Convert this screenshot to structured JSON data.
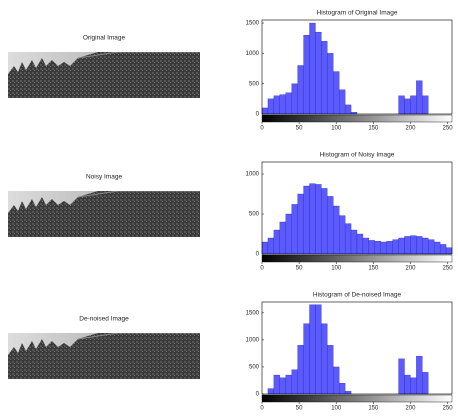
{
  "images": [
    {
      "title": "Original Image"
    },
    {
      "title": "Noisy Image"
    },
    {
      "title": "De-noised Image"
    }
  ],
  "chart_data": [
    {
      "type": "histogram",
      "title": "Histogram of Original Image",
      "color": "#5a5aff",
      "bins": [
        0,
        8,
        16,
        24,
        32,
        40,
        48,
        56,
        64,
        72,
        80,
        88,
        96,
        104,
        112,
        120,
        128,
        136,
        144,
        152,
        160,
        168,
        176,
        184,
        192,
        200,
        208,
        216,
        224,
        232,
        240,
        248,
        256
      ],
      "counts": [
        100,
        250,
        300,
        320,
        350,
        500,
        800,
        1300,
        1500,
        1350,
        1200,
        1000,
        700,
        400,
        150,
        30,
        0,
        0,
        0,
        0,
        0,
        0,
        0,
        300,
        250,
        300,
        550,
        300,
        0,
        0,
        0,
        0
      ],
      "xlim": [
        0,
        256
      ],
      "xticks": [
        0,
        50,
        100,
        150,
        200,
        250
      ],
      "ylim": [
        0,
        1550
      ],
      "yticks": [
        0,
        500,
        1000,
        1500
      ]
    },
    {
      "type": "histogram",
      "title": "Histogram of Noisy Image",
      "color": "#5a5aff",
      "bins": [
        0,
        8,
        16,
        24,
        32,
        40,
        48,
        56,
        64,
        72,
        80,
        88,
        96,
        104,
        112,
        120,
        128,
        136,
        144,
        152,
        160,
        168,
        176,
        184,
        192,
        200,
        208,
        216,
        224,
        232,
        240,
        248,
        256
      ],
      "counts": [
        150,
        200,
        300,
        400,
        500,
        620,
        750,
        850,
        880,
        870,
        820,
        720,
        600,
        480,
        380,
        300,
        250,
        200,
        170,
        160,
        150,
        160,
        180,
        200,
        220,
        230,
        220,
        200,
        180,
        150,
        120,
        80
      ],
      "xlim": [
        0,
        256
      ],
      "xticks": [
        0,
        50,
        100,
        150,
        200,
        250
      ],
      "ylim": [
        0,
        1150
      ],
      "yticks": [
        0,
        500,
        1000
      ]
    },
    {
      "type": "histogram",
      "title": "Histogram of De-noised Image",
      "color": "#5a5aff",
      "bins": [
        0,
        8,
        16,
        24,
        32,
        40,
        48,
        56,
        64,
        72,
        80,
        88,
        96,
        104,
        112,
        120,
        128,
        136,
        144,
        152,
        160,
        168,
        176,
        184,
        192,
        200,
        208,
        216,
        224,
        232,
        240,
        248,
        256
      ],
      "counts": [
        0,
        100,
        350,
        300,
        350,
        450,
        900,
        1300,
        1650,
        1650,
        1300,
        900,
        500,
        200,
        50,
        0,
        0,
        0,
        0,
        0,
        0,
        0,
        0,
        650,
        350,
        300,
        700,
        400,
        0,
        0,
        0,
        0
      ],
      "xlim": [
        0,
        256
      ],
      "xticks": [
        0,
        50,
        100,
        150,
        200,
        250
      ],
      "ylim": [
        0,
        1700
      ],
      "yticks": [
        0,
        500,
        1000,
        1500
      ]
    }
  ]
}
